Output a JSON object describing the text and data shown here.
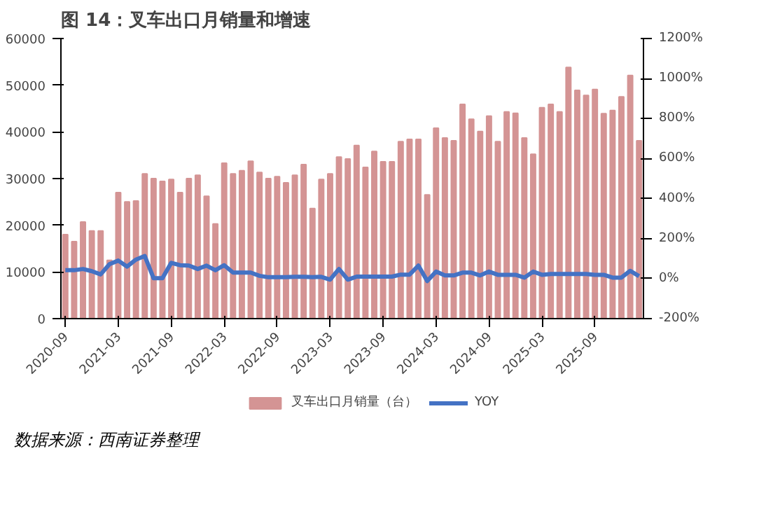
{
  "chart_data": {
    "type": "bar",
    "title": "图 14：叉车出口月销量和增速",
    "categories": [
      "2020-09",
      null,
      null,
      null,
      null,
      null,
      "2021-03",
      null,
      null,
      null,
      null,
      null,
      "2021-09",
      null,
      null,
      null,
      null,
      null,
      "2022-03",
      null,
      null,
      null,
      null,
      null,
      "2022-09",
      null,
      null,
      null,
      null,
      null,
      "2023-03",
      null,
      null,
      null,
      null,
      null,
      "2023-09",
      null,
      null,
      null,
      null,
      null,
      "2024-03",
      null,
      null,
      null,
      null,
      null,
      "2024-09",
      null,
      null,
      null,
      null,
      null,
      "2025-03",
      null,
      null,
      null,
      null,
      null,
      "2025-09",
      null,
      null,
      null,
      null,
      null
    ],
    "series": [
      {
        "name": "叉车出口月销量（台）",
        "color": "#d49494",
        "values": [
          18000,
          16500,
          20700,
          18800,
          18800,
          12500,
          27000,
          25000,
          25200,
          31000,
          30000,
          29400,
          29800,
          27000,
          30000,
          30700,
          26200,
          20300,
          33300,
          31000,
          31700,
          33700,
          31300,
          30000,
          30400,
          29100,
          30700,
          33000,
          23600,
          29800,
          31000,
          34600,
          34200,
          37100,
          32400,
          35800,
          33600,
          33600,
          37900,
          38400,
          38400,
          26500,
          40800,
          38700,
          38100,
          45900,
          42700,
          40100,
          43400,
          37900,
          44300,
          44000,
          38700,
          35200,
          45200,
          45900,
          44300,
          53800,
          48900,
          47800,
          49100,
          43900,
          44600,
          47500,
          52100,
          38100
        ]
      },
      {
        "name": "YOY",
        "type": "line",
        "axis": "y2",
        "color": "#4472c4",
        "values": [
          42,
          42,
          48,
          37,
          21,
          72,
          90,
          60,
          95,
          113,
          2,
          2,
          79,
          67,
          65,
          48,
          65,
          42,
          67,
          30,
          30,
          30,
          14,
          7,
          7,
          7,
          9,
          9,
          7,
          9,
          -5,
          48,
          -5,
          10,
          10,
          10,
          10,
          10,
          20,
          20,
          65,
          -12,
          35,
          16,
          16,
          30,
          30,
          16,
          35,
          19,
          19,
          19,
          5,
          35,
          19,
          23,
          23,
          23,
          23,
          23,
          19,
          19,
          5,
          5,
          39,
          12
        ]
      }
    ],
    "ylim": [
      0,
      60000
    ],
    "yticks": [
      0,
      10000,
      20000,
      30000,
      40000,
      50000,
      60000
    ],
    "y2lim": [
      -200,
      1200
    ],
    "y2ticks": [
      {
        "value": -200,
        "label": "-200%"
      },
      {
        "value": 0,
        "label": "0%"
      },
      {
        "value": 200,
        "label": "200%"
      },
      {
        "value": 400,
        "label": "400%"
      },
      {
        "value": 600,
        "label": "600%"
      },
      {
        "value": 800,
        "label": "800%"
      },
      {
        "value": 1000,
        "label": "1000%"
      },
      {
        "value": 1200,
        "label": "1200%"
      }
    ],
    "grid": false,
    "legend": "bottom",
    "marker": "none",
    "line_style": "solid",
    "annotations": [
      "数据来源：西南证券整理"
    ]
  }
}
